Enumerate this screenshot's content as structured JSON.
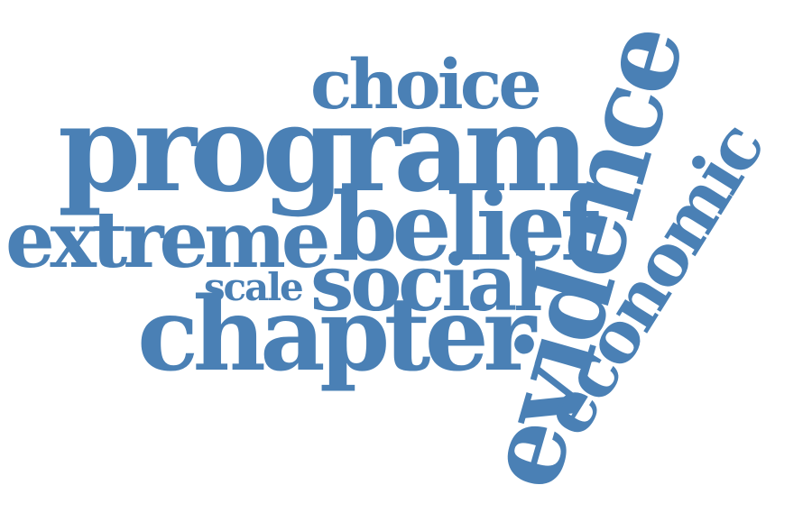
{
  "colors": {
    "word": "#4a80b5",
    "background": "#ffffff"
  },
  "words": {
    "choice": "choice",
    "program": "program",
    "extreme": "extreme",
    "belief": "belief",
    "scale": "scale",
    "social": "social",
    "chapter": "chapter",
    "evidence": "evidence",
    "economic": "economic"
  }
}
